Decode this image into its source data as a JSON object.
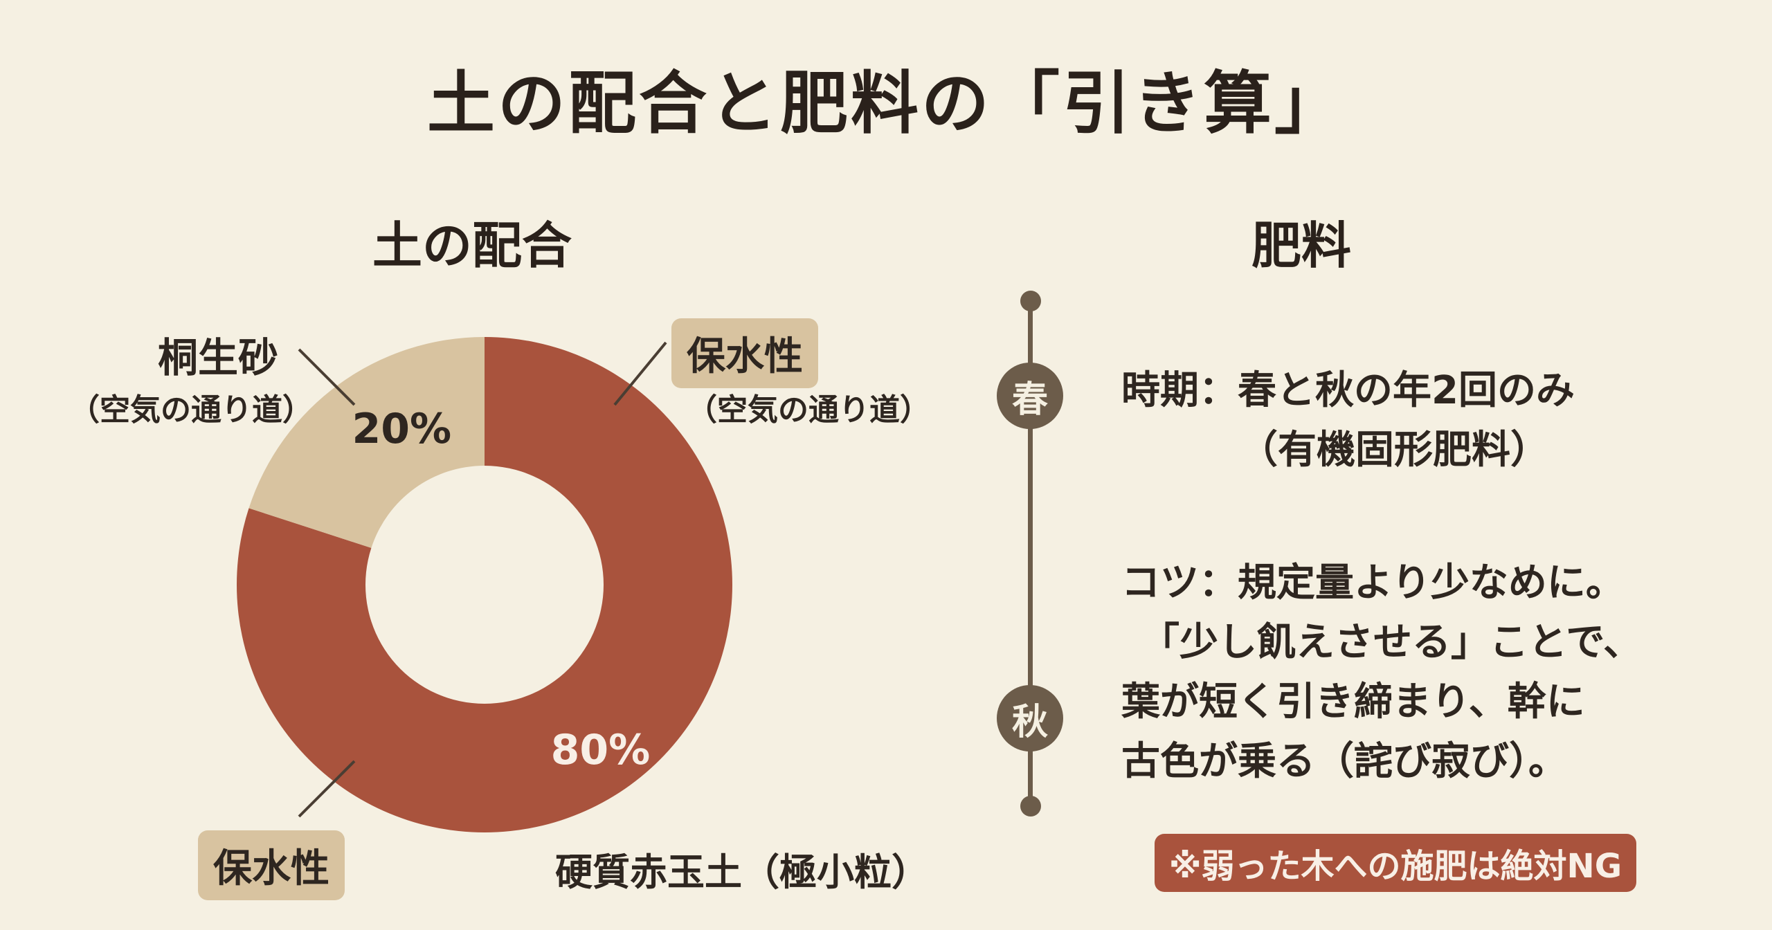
{
  "title": "土の配合と肥料の「引き算」",
  "soil": {
    "heading": "土の配合",
    "label_kiryu": "桐生砂",
    "label_kiryu_sub": "（空気の通り道）",
    "label_hosui_top": "保水性",
    "label_hosui_top_sub": "（空気の通り道）",
    "label_hosui_bottom": "保水性",
    "label_akadama": "硬質赤玉土（極小粒）"
  },
  "chart_data": {
    "type": "pie",
    "donut": true,
    "categories": [
      "硬質赤玉土（極小粒）",
      "桐生砂"
    ],
    "values": [
      80,
      20
    ],
    "data_labels": [
      "80%",
      "20%"
    ],
    "colors": [
      "#a9533d",
      "#d8c3a0"
    ]
  },
  "fertilizer": {
    "heading": "肥料",
    "season_spring": "春",
    "season_autumn": "秋",
    "timing_line1": "時期：春と秋の年2回のみ",
    "timing_line2": "（有機固形肥料）",
    "tip_lines": [
      "コツ：規定量より少なめに。",
      "　「少し飢えさせる」ことで、",
      "葉が短く引き締まり、幹に",
      "古色が乗る（詫び寂び）。"
    ],
    "warning": "※弱った木への施肥は絶対NG"
  },
  "colors": {
    "background": "#f5f0e2",
    "main_brown": "#a9533d",
    "light_tan": "#d8c3a0",
    "timeline": "#6c5c4a"
  }
}
